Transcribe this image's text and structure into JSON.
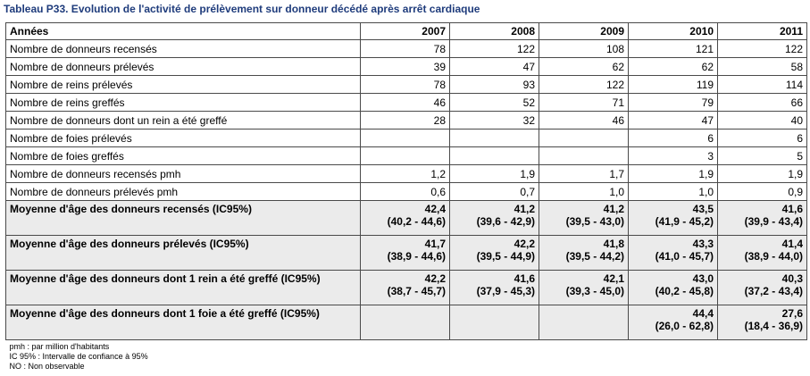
{
  "caption": "Tableau P33. Evolution de l'activité de prélèvement sur donneur décédé après arrêt cardiaque",
  "header": {
    "label": "Années",
    "years": [
      "2007",
      "2008",
      "2009",
      "2010",
      "2011"
    ]
  },
  "rows": [
    {
      "label": "Nombre de donneurs recensés",
      "values": [
        "78",
        "122",
        "108",
        "121",
        "122"
      ]
    },
    {
      "label": "Nombre de donneurs prélevés",
      "values": [
        "39",
        "47",
        "62",
        "62",
        "58"
      ]
    },
    {
      "label": "Nombre de reins prélevés",
      "values": [
        "78",
        "93",
        "122",
        "119",
        "114"
      ]
    },
    {
      "label": "Nombre de reins greffés",
      "values": [
        "46",
        "52",
        "71",
        "79",
        "66"
      ]
    },
    {
      "label": "Nombre de donneurs dont un rein a été greffé",
      "values": [
        "28",
        "32",
        "46",
        "47",
        "40"
      ]
    },
    {
      "label": "Nombre de foies prélevés",
      "values": [
        "",
        "",
        "",
        "6",
        "6"
      ]
    },
    {
      "label": "Nombre de foies greffés",
      "values": [
        "",
        "",
        "",
        "3",
        "5"
      ]
    },
    {
      "label": "Nombre de donneurs recensés pmh",
      "values": [
        "1,2",
        "1,9",
        "1,7",
        "1,9",
        "1,9"
      ]
    },
    {
      "label": "Nombre de donneurs prélevés pmh",
      "values": [
        "0,6",
        "0,7",
        "1,0",
        "1,0",
        "0,9"
      ]
    }
  ],
  "age_rows": [
    {
      "label": "Moyenne d'âge des donneurs recensés (IC95%)",
      "values": [
        {
          "mean": "42,4",
          "ci": "(40,2 - 44,6)"
        },
        {
          "mean": "41,2",
          "ci": "(39,6 - 42,9)"
        },
        {
          "mean": "41,2",
          "ci": "(39,5 - 43,0)"
        },
        {
          "mean": "43,5",
          "ci": "(41,9 - 45,2)"
        },
        {
          "mean": "41,6",
          "ci": "(39,9 - 43,4)"
        }
      ]
    },
    {
      "label": "Moyenne d'âge des donneurs prélevés (IC95%)",
      "values": [
        {
          "mean": "41,7",
          "ci": "(38,9 - 44,6)"
        },
        {
          "mean": "42,2",
          "ci": "(39,5 - 44,9)"
        },
        {
          "mean": "41,8",
          "ci": "(39,5 - 44,2)"
        },
        {
          "mean": "43,3",
          "ci": "(41,0 - 45,7)"
        },
        {
          "mean": "41,4",
          "ci": "(38,9 - 44,0)"
        }
      ]
    },
    {
      "label": "Moyenne d'âge des donneurs dont 1 rein a été greffé (IC95%)",
      "values": [
        {
          "mean": "42,2",
          "ci": "(38,7 - 45,7)"
        },
        {
          "mean": "41,6",
          "ci": "(37,9 - 45,3)"
        },
        {
          "mean": "42,1",
          "ci": "(39,3 - 45,0)"
        },
        {
          "mean": "43,0",
          "ci": "(40,2 - 45,8)"
        },
        {
          "mean": "40,3",
          "ci": "(37,2 - 43,4)"
        }
      ]
    },
    {
      "label": "Moyenne d'âge des donneurs dont 1 foie a été greffé (IC95%)",
      "values": [
        {
          "mean": "",
          "ci": ""
        },
        {
          "mean": "",
          "ci": ""
        },
        {
          "mean": "",
          "ci": ""
        },
        {
          "mean": "44,4",
          "ci": "(26,0 - 62,8)"
        },
        {
          "mean": "27,6",
          "ci": "(18,4 - 36,9)"
        }
      ]
    }
  ],
  "notes": [
    "pmh : par million d'habitants",
    "IC 95% : Intervalle de confiance à 95%",
    "NO : Non observable"
  ]
}
